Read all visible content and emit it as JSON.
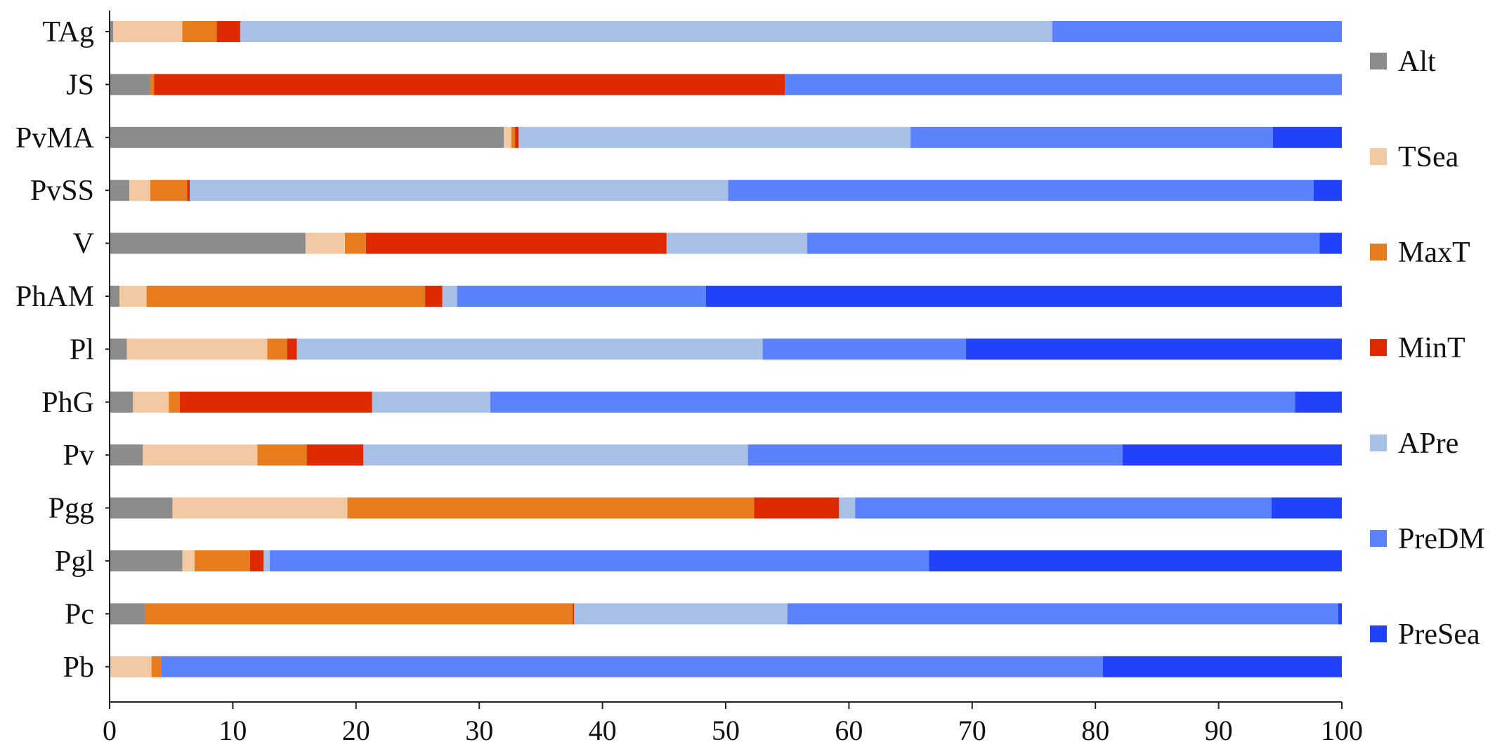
{
  "chart_data": {
    "type": "bar",
    "orientation": "horizontal",
    "stacked": true,
    "categories": [
      "TAg",
      "JS",
      "PvMA",
      "PvSS",
      "V",
      "PhAM",
      "Pl",
      "PhG",
      "Pv",
      "Pgg",
      "Pgl",
      "Pc",
      "Pb"
    ],
    "series": [
      {
        "name": "Alt",
        "color": "#8c8c8c",
        "values": [
          0.3,
          3.3,
          32.0,
          1.6,
          15.9,
          0.8,
          1.4,
          1.9,
          2.7,
          5.1,
          5.9,
          2.9,
          0.0
        ]
      },
      {
        "name": "TSea",
        "color": "#f2c9a3",
        "values": [
          5.6,
          0.0,
          0.6,
          1.7,
          3.2,
          2.2,
          11.4,
          2.9,
          9.3,
          14.2,
          1.0,
          0.0,
          3.4
        ]
      },
      {
        "name": "MaxT",
        "color": "#e67c1e",
        "values": [
          2.8,
          0.3,
          0.3,
          3.0,
          1.7,
          22.6,
          1.6,
          0.9,
          4.0,
          33.0,
          4.5,
          34.7,
          0.8
        ]
      },
      {
        "name": "MinT",
        "color": "#dd2a00",
        "values": [
          1.9,
          51.2,
          0.3,
          0.2,
          24.4,
          1.4,
          0.8,
          15.6,
          4.6,
          6.9,
          1.1,
          0.1,
          0.0
        ]
      },
      {
        "name": "APre",
        "color": "#a9c0e6",
        "values": [
          65.9,
          0.0,
          31.8,
          43.7,
          11.4,
          1.2,
          37.8,
          9.6,
          31.2,
          1.3,
          0.5,
          17.3,
          0.0
        ]
      },
      {
        "name": "PreDM",
        "color": "#5b81fb",
        "values": [
          23.5,
          45.2,
          29.4,
          47.5,
          41.6,
          20.2,
          16.5,
          65.3,
          30.4,
          33.8,
          53.5,
          44.7,
          76.4
        ]
      },
      {
        "name": "PreSea",
        "color": "#2142f8",
        "values": [
          0.0,
          0.0,
          5.6,
          2.3,
          1.8,
          51.6,
          30.5,
          3.8,
          17.8,
          5.7,
          33.5,
          0.3,
          19.4
        ]
      }
    ],
    "xlim": [
      0,
      100
    ],
    "xticks": [
      "0",
      "10",
      "20",
      "30",
      "40",
      "50",
      "60",
      "70",
      "80",
      "90",
      "100"
    ],
    "title": "",
    "xlabel": "",
    "ylabel": "",
    "grid": false,
    "legend_position": "right"
  }
}
